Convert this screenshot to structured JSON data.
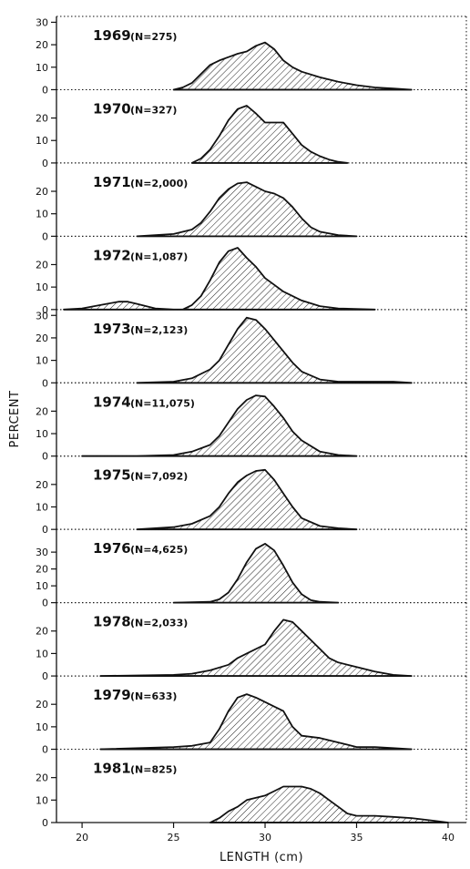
{
  "chart_data": {
    "type": "area",
    "xlabel": "LENGTH (cm)",
    "ylabel": "PERCENT",
    "xlim": [
      19,
      40.5
    ],
    "x_ticks": [
      20,
      25,
      30,
      35,
      40
    ],
    "panels": [
      {
        "year": "1969",
        "n": "(N=275)",
        "ymax": 30,
        "yticks": [
          0,
          10,
          20,
          30
        ],
        "points": [
          [
            25,
            0
          ],
          [
            25.5,
            1
          ],
          [
            26,
            3
          ],
          [
            26.5,
            7
          ],
          [
            27,
            11
          ],
          [
            27.5,
            13
          ],
          [
            28,
            14.5
          ],
          [
            28.5,
            16
          ],
          [
            29,
            17
          ],
          [
            29.5,
            19.5
          ],
          [
            30,
            21
          ],
          [
            30.5,
            18
          ],
          [
            31,
            13
          ],
          [
            31.5,
            10
          ],
          [
            32,
            8
          ],
          [
            33,
            5.5
          ],
          [
            34,
            3.5
          ],
          [
            35,
            2
          ],
          [
            36,
            1
          ],
          [
            37,
            0.5
          ],
          [
            38,
            0
          ]
        ]
      },
      {
        "year": "1970",
        "n": "(N=327)",
        "ymax": 30,
        "yticks": [
          0,
          10,
          20
        ],
        "points": [
          [
            26,
            0
          ],
          [
            26.5,
            2
          ],
          [
            27,
            6
          ],
          [
            27.5,
            12
          ],
          [
            28,
            19
          ],
          [
            28.5,
            24
          ],
          [
            29,
            25.5
          ],
          [
            29.5,
            22
          ],
          [
            30,
            18
          ],
          [
            30.5,
            18
          ],
          [
            31,
            18
          ],
          [
            31.5,
            13
          ],
          [
            32,
            8
          ],
          [
            32.5,
            5
          ],
          [
            33,
            3
          ],
          [
            33.5,
            1.5
          ],
          [
            34,
            0.5
          ],
          [
            34.5,
            0
          ]
        ]
      },
      {
        "year": "1971",
        "n": "(N=2,000)",
        "ymax": 30,
        "yticks": [
          0,
          10,
          20
        ],
        "points": [
          [
            23,
            0
          ],
          [
            24,
            0.5
          ],
          [
            25,
            1
          ],
          [
            26,
            3
          ],
          [
            26.5,
            6
          ],
          [
            27,
            11
          ],
          [
            27.5,
            17
          ],
          [
            28,
            21
          ],
          [
            28.5,
            23.5
          ],
          [
            29,
            24
          ],
          [
            29.5,
            22
          ],
          [
            30,
            20
          ],
          [
            30.5,
            19
          ],
          [
            31,
            17
          ],
          [
            31.5,
            13
          ],
          [
            32,
            8
          ],
          [
            32.5,
            4
          ],
          [
            33,
            2
          ],
          [
            34,
            0.5
          ],
          [
            35,
            0
          ]
        ]
      },
      {
        "year": "1972",
        "n": "(N=1,087)",
        "ymax": 30,
        "yticks": [
          0,
          10,
          20
        ],
        "points": [
          [
            19,
            0
          ],
          [
            20,
            0.5
          ],
          [
            21,
            2
          ],
          [
            22,
            3.5
          ],
          [
            22.5,
            3.5
          ],
          [
            23,
            2.5
          ],
          [
            24,
            0.5
          ],
          [
            25,
            0
          ],
          [
            25.5,
            0
          ],
          [
            26,
            2
          ],
          [
            26.5,
            6
          ],
          [
            27,
            13
          ],
          [
            27.5,
            21
          ],
          [
            28,
            26
          ],
          [
            28.5,
            27.5
          ],
          [
            29,
            23
          ],
          [
            29.5,
            19
          ],
          [
            30,
            14
          ],
          [
            30.5,
            11
          ],
          [
            31,
            8
          ],
          [
            32,
            4
          ],
          [
            33,
            1.5
          ],
          [
            34,
            0.5
          ],
          [
            36,
            0
          ]
        ]
      },
      {
        "year": "1973",
        "n": "(N=2,123)",
        "ymax": 30,
        "yticks": [
          0,
          10,
          20,
          30
        ],
        "points": [
          [
            23,
            0
          ],
          [
            25,
            0.5
          ],
          [
            26,
            2
          ],
          [
            27,
            6
          ],
          [
            27.5,
            10
          ],
          [
            28,
            17
          ],
          [
            28.5,
            24
          ],
          [
            29,
            29
          ],
          [
            29.5,
            28
          ],
          [
            30,
            24
          ],
          [
            30.5,
            19
          ],
          [
            31,
            14
          ],
          [
            31.5,
            9
          ],
          [
            32,
            5
          ],
          [
            33,
            1.5
          ],
          [
            34,
            0.5
          ],
          [
            36,
            0.5
          ],
          [
            37,
            0.5
          ],
          [
            38,
            0
          ]
        ]
      },
      {
        "year": "1974",
        "n": "(N=11,075)",
        "ymax": 30,
        "yticks": [
          0,
          10,
          20
        ],
        "points": [
          [
            20,
            0
          ],
          [
            23,
            0
          ],
          [
            25,
            0.5
          ],
          [
            26,
            2
          ],
          [
            27,
            5
          ],
          [
            27.5,
            9
          ],
          [
            28,
            15
          ],
          [
            28.5,
            21
          ],
          [
            29,
            25
          ],
          [
            29.5,
            27
          ],
          [
            30,
            26.5
          ],
          [
            30.5,
            22
          ],
          [
            31,
            17
          ],
          [
            31.5,
            11
          ],
          [
            32,
            7
          ],
          [
            33,
            2
          ],
          [
            34,
            0.5
          ],
          [
            35,
            0
          ]
        ]
      },
      {
        "year": "1975",
        "n": "(N=7,092)",
        "ymax": 30,
        "yticks": [
          0,
          10,
          20
        ],
        "points": [
          [
            23,
            0
          ],
          [
            25,
            1
          ],
          [
            26,
            2.5
          ],
          [
            27,
            6
          ],
          [
            27.5,
            10
          ],
          [
            28,
            16
          ],
          [
            28.5,
            21
          ],
          [
            29,
            24
          ],
          [
            29.5,
            26
          ],
          [
            30,
            26.5
          ],
          [
            30.5,
            22
          ],
          [
            31,
            16
          ],
          [
            31.5,
            10
          ],
          [
            32,
            5
          ],
          [
            33,
            1.5
          ],
          [
            34,
            0.5
          ],
          [
            35,
            0
          ]
        ]
      },
      {
        "year": "1976",
        "n": "(N=4,625)",
        "ymax": 40,
        "yticks": [
          0,
          10,
          20,
          30
        ],
        "points": [
          [
            25,
            0
          ],
          [
            27,
            0.5
          ],
          [
            27.5,
            2
          ],
          [
            28,
            6
          ],
          [
            28.5,
            14
          ],
          [
            29,
            24
          ],
          [
            29.5,
            32
          ],
          [
            30,
            35
          ],
          [
            30.5,
            31
          ],
          [
            31,
            22
          ],
          [
            31.5,
            12
          ],
          [
            32,
            5
          ],
          [
            32.5,
            1.5
          ],
          [
            33,
            0.5
          ],
          [
            34,
            0
          ]
        ]
      },
      {
        "year": "1978",
        "n": "(N=2,033)",
        "ymax": 30,
        "yticks": [
          0,
          10,
          20
        ],
        "points": [
          [
            21,
            0
          ],
          [
            25,
            0.5
          ],
          [
            26,
            1
          ],
          [
            27,
            2.5
          ],
          [
            28,
            5
          ],
          [
            28.5,
            8
          ],
          [
            29,
            10
          ],
          [
            30,
            14
          ],
          [
            30.5,
            20
          ],
          [
            31,
            25
          ],
          [
            31.5,
            24
          ],
          [
            32,
            20
          ],
          [
            32.5,
            16
          ],
          [
            33,
            12
          ],
          [
            33.5,
            8
          ],
          [
            34,
            6
          ],
          [
            35,
            4
          ],
          [
            36,
            2
          ],
          [
            37,
            0.5
          ],
          [
            38,
            0
          ]
        ]
      },
      {
        "year": "1979",
        "n": "(N=633)",
        "ymax": 30,
        "yticks": [
          0,
          10,
          20
        ],
        "points": [
          [
            21,
            0
          ],
          [
            25,
            1
          ],
          [
            26,
            1.5
          ],
          [
            27,
            3
          ],
          [
            27.5,
            9
          ],
          [
            28,
            17
          ],
          [
            28.5,
            23
          ],
          [
            29,
            24.5
          ],
          [
            29.5,
            23
          ],
          [
            30,
            21
          ],
          [
            30.5,
            19
          ],
          [
            31,
            17
          ],
          [
            31.5,
            10
          ],
          [
            32,
            6
          ],
          [
            33,
            5
          ],
          [
            34,
            3
          ],
          [
            35,
            1
          ],
          [
            36,
            1
          ],
          [
            37,
            0.5
          ],
          [
            38,
            0
          ]
        ]
      },
      {
        "year": "1981",
        "n": "(N=825)",
        "ymax": 30,
        "yticks": [
          0,
          10,
          20
        ],
        "points": [
          [
            27,
            0
          ],
          [
            27.5,
            2
          ],
          [
            28,
            5
          ],
          [
            28.5,
            7
          ],
          [
            29,
            10
          ],
          [
            30,
            12
          ],
          [
            30.5,
            14
          ],
          [
            31,
            16
          ],
          [
            32,
            16
          ],
          [
            32.5,
            15
          ],
          [
            33,
            13
          ],
          [
            33.5,
            10
          ],
          [
            34,
            7
          ],
          [
            34.5,
            4
          ],
          [
            35,
            3
          ],
          [
            36,
            3
          ],
          [
            37,
            2.5
          ],
          [
            38,
            2
          ],
          [
            39,
            1
          ],
          [
            40,
            0
          ]
        ]
      }
    ]
  }
}
